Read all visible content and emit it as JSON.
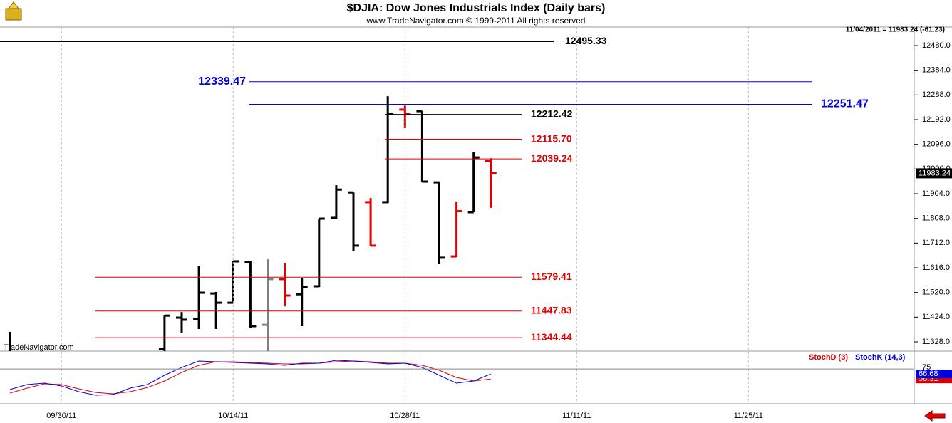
{
  "chart_data": [
    {
      "type": "ohlc",
      "title": "$DJIA:  Dow Jones Industrials Index  (Daily bars)",
      "subtitle": "www.TradeNavigator.com © 1999-2011 All rights reserved",
      "annotation": "11/04/2011 = 11983.24 (-61.23)",
      "watermark": "TradeNavigator.com",
      "categories": [
        null,
        null,
        null,
        "09/30/11",
        null,
        null,
        null,
        null,
        null,
        null,
        null,
        null,
        null,
        "10/14/11",
        null,
        null,
        null,
        null,
        null,
        null,
        null,
        null,
        null,
        "10/28/11",
        null,
        null,
        null,
        null,
        null,
        null,
        null,
        null,
        null,
        "11/11/11",
        null,
        null,
        null,
        null,
        null,
        null,
        null,
        null,
        null,
        "11/25/11",
        null,
        null,
        null,
        null,
        null,
        null,
        null,
        null,
        null
      ],
      "open": [
        null,
        null,
        null,
        null,
        null,
        null,
        null,
        null,
        null,
        11300,
        11422,
        11417,
        11516,
        11480,
        11638,
        11394,
        11572,
        11513,
        11544,
        11810,
        11909,
        11871,
        11871,
        12231,
        12225,
        11948,
        11660,
        11832,
        12031,
        null,
        null,
        null,
        null,
        null,
        null,
        null,
        null,
        null,
        null,
        null,
        null,
        null,
        null,
        null,
        null,
        null,
        null,
        null,
        null,
        null,
        null,
        null,
        null
      ],
      "high": [
        11367,
        null,
        null,
        null,
        null,
        null,
        null,
        null,
        null,
        11430,
        11444,
        11622,
        11522,
        11641,
        11641,
        11649,
        11633,
        11577,
        11807,
        11937,
        11909,
        11887,
        12283,
        12247,
        12225,
        11948,
        11873,
        12065,
        12042,
        null,
        null,
        null,
        null,
        null,
        null,
        null,
        null,
        null,
        null,
        null,
        null,
        null,
        null,
        null,
        null,
        null,
        null,
        null,
        null,
        null,
        null,
        null,
        null
      ],
      "low": [
        11292,
        null,
        null,
        null,
        null,
        null,
        null,
        null,
        null,
        11292,
        11364,
        11378,
        11378,
        11480,
        11381,
        11292,
        11466,
        11389,
        11541,
        11807,
        11682,
        11699,
        11868,
        12159,
        11948,
        11630,
        11658,
        11832,
        11849,
        null,
        null,
        null,
        null,
        null,
        null,
        null,
        null,
        null,
        null,
        null,
        null,
        null,
        null,
        null,
        null,
        null,
        null,
        null,
        null,
        null,
        null,
        null,
        null
      ],
      "close": [
        null,
        null,
        null,
        null,
        null,
        null,
        null,
        null,
        null,
        11430,
        11414,
        11519,
        11480,
        11641,
        11389,
        11572,
        11508,
        11541,
        11807,
        11920,
        11702,
        11702,
        12214,
        12214,
        11951,
        11655,
        11836,
        12045,
        11983.24,
        null,
        null,
        null,
        null,
        null,
        null,
        null,
        null,
        null,
        null,
        null,
        null,
        null,
        null,
        null,
        null,
        null,
        null,
        null,
        null,
        null,
        null,
        null,
        null
      ],
      "colors": [
        "#000000",
        null,
        null,
        null,
        null,
        null,
        null,
        null,
        null,
        "#000000",
        "#000000",
        "#000000",
        "#000000",
        "#000000",
        "#000000",
        "#808080",
        "#e00000",
        "#000000",
        "#000000",
        "#000000",
        "#000000",
        "#e00000",
        "#000000",
        "#e00000",
        "#000000",
        "#000000",
        "#e00000",
        "#000000",
        "#e00000",
        null,
        null,
        null,
        null,
        null,
        null,
        null,
        null,
        null,
        null,
        null,
        null,
        null,
        null,
        null,
        null,
        null,
        null,
        null,
        null,
        null,
        null,
        null,
        null
      ],
      "levels": [
        {
          "value": 12495.33,
          "label": "12495.33",
          "color": "#000000"
        },
        {
          "value": 12339.47,
          "label": "12339.47",
          "color": "#0000e0"
        },
        {
          "value": 12251.47,
          "label": "12251.47",
          "color": "#0000e0"
        },
        {
          "value": 12212.42,
          "label": "12212.42",
          "color": "#000000"
        },
        {
          "value": 12115.7,
          "label": "12115.70",
          "color": "#e00000"
        },
        {
          "value": 12039.24,
          "label": "12039.24",
          "color": "#e00000"
        },
        {
          "value": 11579.41,
          "label": "11579.41",
          "color": "#e00000"
        },
        {
          "value": 11447.83,
          "label": "11447.83",
          "color": "#e00000"
        },
        {
          "value": 11344.44,
          "label": "11344.44",
          "color": "#e00000"
        }
      ],
      "ylim": [
        11292,
        12552
      ],
      "yticks": [
        {
          "value": 11328,
          "label": "11328.0"
        },
        {
          "value": 11424,
          "label": "11424.0"
        },
        {
          "value": 11520,
          "label": "11520.0"
        },
        {
          "value": 11616,
          "label": "11616.0"
        },
        {
          "value": 11712,
          "label": "11712.0"
        },
        {
          "value": 11808,
          "label": "11808.0"
        },
        {
          "value": 11904,
          "label": "11904.0"
        },
        {
          "value": 12000,
          "label": "12000.0"
        },
        {
          "value": 12096,
          "label": "12096.0"
        },
        {
          "value": 12192,
          "label": "12192.0"
        },
        {
          "value": 12288,
          "label": "12288.0"
        },
        {
          "value": 12384,
          "label": "12384.0"
        },
        {
          "value": 12480,
          "label": "12480.0"
        }
      ],
      "grid": true
    },
    {
      "type": "line",
      "series": [
        {
          "name": "StochD (3)",
          "color": "#e00000",
          "values": [
            34.8,
            43.1,
            50.2,
            49.0,
            41.9,
            35.9,
            33.6,
            37.1,
            44.2,
            54.9,
            69.2,
            81.0,
            86.9,
            86.9,
            85.8,
            84.6,
            83.4,
            83.4,
            84.6,
            86.9,
            88.1,
            86.9,
            84.6,
            84.6,
            81.0,
            72.7,
            60.9,
            54.9,
            58.31,
            null,
            null,
            null,
            null,
            null,
            null,
            null,
            null,
            null,
            null,
            null,
            null,
            null,
            null,
            null,
            null,
            null,
            null,
            null,
            null,
            null,
            null,
            null,
            null
          ]
        },
        {
          "name": "StochK (14,3)",
          "color": "#0000e0",
          "values": [
            40.7,
            49.0,
            51.4,
            46.6,
            37.1,
            31.2,
            32.4,
            43.1,
            49.0,
            64.4,
            77.5,
            88.1,
            86.9,
            85.8,
            84.6,
            83.4,
            81.0,
            84.6,
            84.6,
            89.3,
            88.1,
            85.8,
            83.4,
            84.6,
            77.5,
            64.4,
            51.4,
            54.9,
            66.68,
            null,
            null,
            null,
            null,
            null,
            null,
            null,
            null,
            null,
            null,
            null,
            null,
            null,
            null,
            null,
            null,
            null,
            null,
            null,
            null,
            null,
            null,
            null,
            null
          ]
        }
      ],
      "ylim": [
        17,
        100
      ],
      "yticks": [
        75
      ],
      "grid": true
    }
  ]
}
